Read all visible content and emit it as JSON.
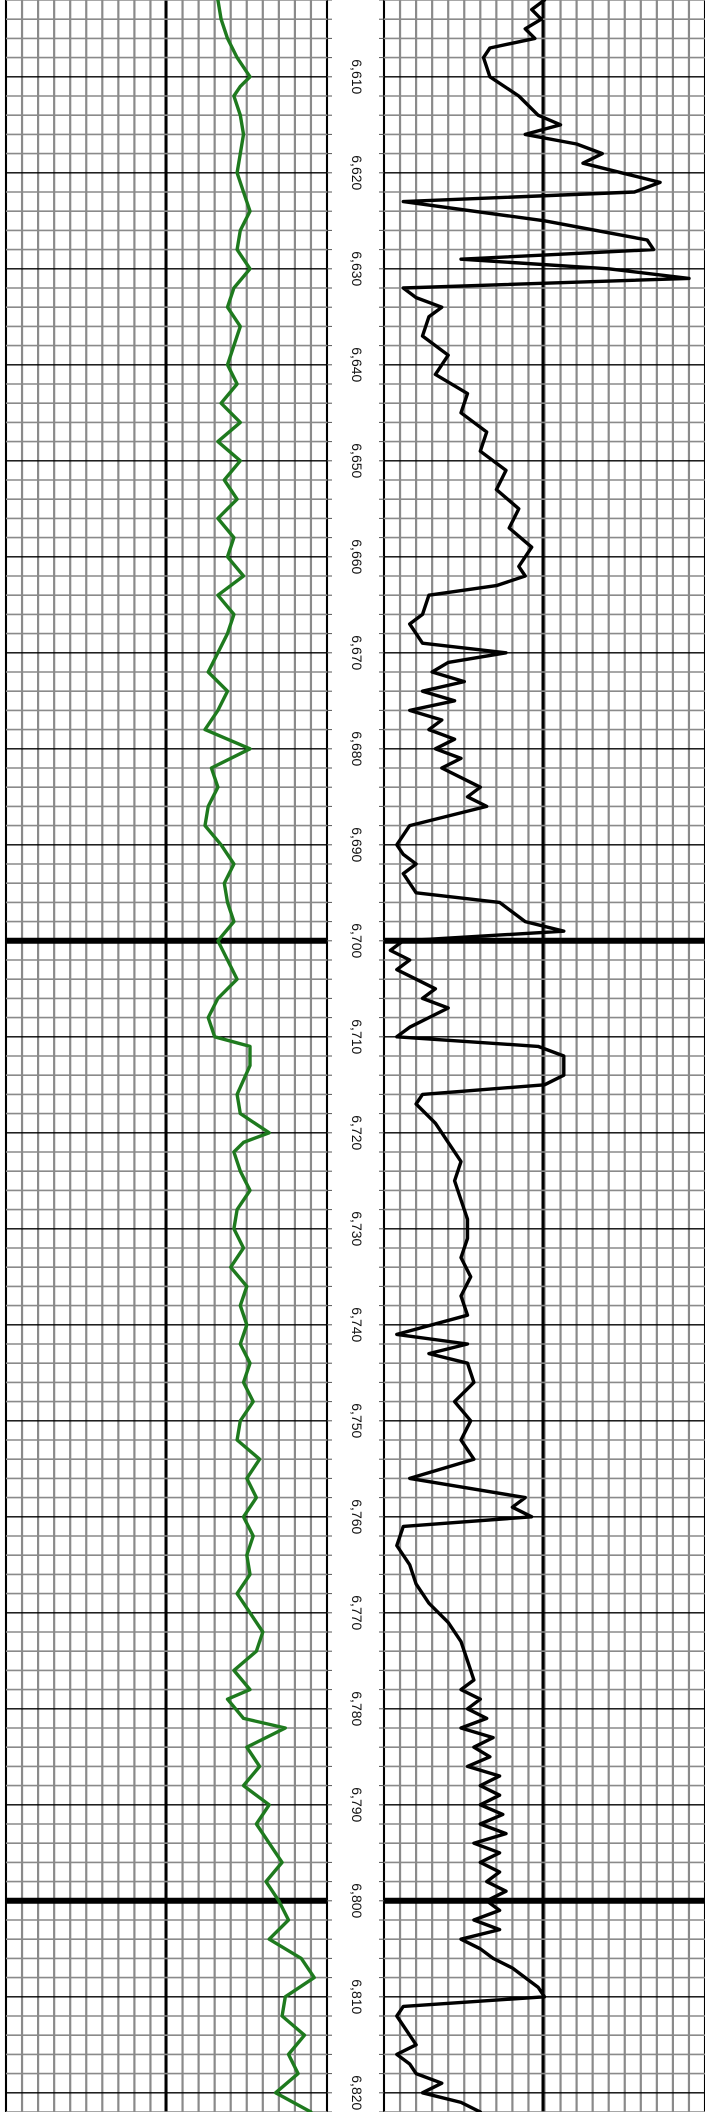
{
  "chart_data": {
    "type": "line",
    "orientation": "vertical-depth",
    "depth_axis": {
      "range": [
        6602,
        6822
      ],
      "tick_labels": [
        "6,610",
        "6,620",
        "6,630",
        "6,640",
        "6,650",
        "6,660",
        "6,670",
        "6,680",
        "6,690",
        "6,700",
        "6,710",
        "6,720",
        "6,730",
        "6,740",
        "6,750",
        "6,760",
        "6,770",
        "6,780",
        "6,790",
        "6,800",
        "6,810",
        "6,820"
      ],
      "tick_values": [
        6610,
        6620,
        6630,
        6640,
        6650,
        6660,
        6670,
        6680,
        6690,
        6700,
        6710,
        6720,
        6730,
        6740,
        6750,
        6760,
        6770,
        6780,
        6790,
        6800,
        6810,
        6820
      ],
      "major_every": 100,
      "grid": true
    },
    "tracks": [
      {
        "series_color": "#1e7a1e",
        "xlim": [
          0,
          1
        ],
        "points": [
          [
            6602,
            0.66
          ],
          [
            6604,
            0.67
          ],
          [
            6606,
            0.69
          ],
          [
            6608,
            0.72
          ],
          [
            6610,
            0.76
          ],
          [
            6611,
            0.73
          ],
          [
            6612,
            0.71
          ],
          [
            6614,
            0.73
          ],
          [
            6616,
            0.74
          ],
          [
            6618,
            0.73
          ],
          [
            6620,
            0.72
          ],
          [
            6622,
            0.74
          ],
          [
            6624,
            0.76
          ],
          [
            6626,
            0.73
          ],
          [
            6628,
            0.72
          ],
          [
            6630,
            0.76
          ],
          [
            6632,
            0.71
          ],
          [
            6634,
            0.69
          ],
          [
            6636,
            0.73
          ],
          [
            6638,
            0.71
          ],
          [
            6640,
            0.69
          ],
          [
            6642,
            0.72
          ],
          [
            6644,
            0.67
          ],
          [
            6646,
            0.73
          ],
          [
            6648,
            0.66
          ],
          [
            6650,
            0.73
          ],
          [
            6652,
            0.68
          ],
          [
            6654,
            0.72
          ],
          [
            6656,
            0.66
          ],
          [
            6658,
            0.71
          ],
          [
            6660,
            0.69
          ],
          [
            6662,
            0.74
          ],
          [
            6664,
            0.66
          ],
          [
            6666,
            0.71
          ],
          [
            6668,
            0.69
          ],
          [
            6670,
            0.66
          ],
          [
            6672,
            0.63
          ],
          [
            6674,
            0.69
          ],
          [
            6676,
            0.66
          ],
          [
            6678,
            0.62
          ],
          [
            6680,
            0.76
          ],
          [
            6682,
            0.64
          ],
          [
            6684,
            0.66
          ],
          [
            6686,
            0.63
          ],
          [
            6688,
            0.62
          ],
          [
            6690,
            0.67
          ],
          [
            6692,
            0.71
          ],
          [
            6694,
            0.68
          ],
          [
            6696,
            0.69
          ],
          [
            6698,
            0.71
          ],
          [
            6700,
            0.66
          ],
          [
            6702,
            0.69
          ],
          [
            6704,
            0.72
          ],
          [
            6706,
            0.66
          ],
          [
            6708,
            0.63
          ],
          [
            6710,
            0.65
          ],
          [
            6711,
            0.76
          ],
          [
            6713,
            0.76
          ],
          [
            6716,
            0.72
          ],
          [
            6718,
            0.73
          ],
          [
            6720,
            0.82
          ],
          [
            6721,
            0.74
          ],
          [
            6722,
            0.71
          ],
          [
            6724,
            0.73
          ],
          [
            6726,
            0.76
          ],
          [
            6728,
            0.72
          ],
          [
            6730,
            0.71
          ],
          [
            6732,
            0.74
          ],
          [
            6734,
            0.7
          ],
          [
            6736,
            0.75
          ],
          [
            6738,
            0.73
          ],
          [
            6740,
            0.75
          ],
          [
            6742,
            0.73
          ],
          [
            6744,
            0.76
          ],
          [
            6746,
            0.74
          ],
          [
            6748,
            0.77
          ],
          [
            6750,
            0.73
          ],
          [
            6752,
            0.72
          ],
          [
            6754,
            0.79
          ],
          [
            6756,
            0.75
          ],
          [
            6758,
            0.78
          ],
          [
            6760,
            0.74
          ],
          [
            6762,
            0.77
          ],
          [
            6764,
            0.75
          ],
          [
            6766,
            0.76
          ],
          [
            6768,
            0.72
          ],
          [
            6770,
            0.76
          ],
          [
            6772,
            0.8
          ],
          [
            6774,
            0.78
          ],
          [
            6776,
            0.71
          ],
          [
            6778,
            0.76
          ],
          [
            6779,
            0.69
          ],
          [
            6781,
            0.74
          ],
          [
            6782,
            0.87
          ],
          [
            6784,
            0.75
          ],
          [
            6786,
            0.79
          ],
          [
            6788,
            0.74
          ],
          [
            6790,
            0.82
          ],
          [
            6792,
            0.78
          ],
          [
            6794,
            0.82
          ],
          [
            6796,
            0.86
          ],
          [
            6798,
            0.81
          ],
          [
            6800,
            0.85
          ],
          [
            6802,
            0.88
          ],
          [
            6804,
            0.82
          ],
          [
            6806,
            0.92
          ],
          [
            6808,
            0.96
          ],
          [
            6810,
            0.87
          ],
          [
            6812,
            0.86
          ],
          [
            6814,
            0.93
          ],
          [
            6816,
            0.88
          ],
          [
            6818,
            0.91
          ],
          [
            6820,
            0.84
          ],
          [
            6822,
            0.95
          ]
        ]
      },
      {
        "series_color": "#000000",
        "xlim": [
          0,
          1
        ],
        "points": [
          [
            6600,
            0.48
          ],
          [
            6602,
            0.5
          ],
          [
            6603,
            0.46
          ],
          [
            6604,
            0.49
          ],
          [
            6605,
            0.44
          ],
          [
            6606,
            0.47
          ],
          [
            6607,
            0.33
          ],
          [
            6608,
            0.31
          ],
          [
            6610,
            0.33
          ],
          [
            6612,
            0.42
          ],
          [
            6614,
            0.48
          ],
          [
            6615,
            0.55
          ],
          [
            6616,
            0.44
          ],
          [
            6617,
            0.6
          ],
          [
            6618,
            0.68
          ],
          [
            6619,
            0.62
          ],
          [
            6620,
            0.74
          ],
          [
            6621,
            0.86
          ],
          [
            6622,
            0.78
          ],
          [
            6623,
            0.06
          ],
          [
            6625,
            0.5
          ],
          [
            6627,
            0.82
          ],
          [
            6628,
            0.84
          ],
          [
            6629,
            0.24
          ],
          [
            6630,
            0.7
          ],
          [
            6631,
            0.95
          ],
          [
            6632,
            0.06
          ],
          [
            6633,
            0.1
          ],
          [
            6634,
            0.18
          ],
          [
            6635,
            0.14
          ],
          [
            6637,
            0.12
          ],
          [
            6639,
            0.2
          ],
          [
            6641,
            0.16
          ],
          [
            6643,
            0.26
          ],
          [
            6645,
            0.24
          ],
          [
            6647,
            0.32
          ],
          [
            6649,
            0.3
          ],
          [
            6651,
            0.38
          ],
          [
            6653,
            0.35
          ],
          [
            6655,
            0.42
          ],
          [
            6657,
            0.39
          ],
          [
            6659,
            0.46
          ],
          [
            6661,
            0.42
          ],
          [
            6662,
            0.44
          ],
          [
            6663,
            0.35
          ],
          [
            6664,
            0.14
          ],
          [
            6666,
            0.12
          ],
          [
            6667,
            0.08
          ],
          [
            6668,
            0.1
          ],
          [
            6669,
            0.12
          ],
          [
            6670,
            0.38
          ],
          [
            6671,
            0.2
          ],
          [
            6672,
            0.15
          ],
          [
            6673,
            0.25
          ],
          [
            6674,
            0.12
          ],
          [
            6675,
            0.22
          ],
          [
            6676,
            0.08
          ],
          [
            6677,
            0.18
          ],
          [
            6678,
            0.14
          ],
          [
            6679,
            0.22
          ],
          [
            6680,
            0.16
          ],
          [
            6681,
            0.24
          ],
          [
            6682,
            0.18
          ],
          [
            6684,
            0.3
          ],
          [
            6685,
            0.26
          ],
          [
            6686,
            0.32
          ],
          [
            6688,
            0.08
          ],
          [
            6690,
            0.04
          ],
          [
            6691,
            0.06
          ],
          [
            6692,
            0.1
          ],
          [
            6693,
            0.06
          ],
          [
            6695,
            0.1
          ],
          [
            6696,
            0.36
          ],
          [
            6697,
            0.4
          ],
          [
            6698,
            0.44
          ],
          [
            6699,
            0.56
          ],
          [
            6700,
            0.06
          ],
          [
            6701,
            0.02
          ],
          [
            6702,
            0.08
          ],
          [
            6703,
            0.04
          ],
          [
            6704,
            0.1
          ],
          [
            6705,
            0.16
          ],
          [
            6706,
            0.12
          ],
          [
            6707,
            0.2
          ],
          [
            6708,
            0.14
          ],
          [
            6709,
            0.08
          ],
          [
            6710,
            0.04
          ],
          [
            6711,
            0.48
          ],
          [
            6712,
            0.56
          ],
          [
            6714,
            0.56
          ],
          [
            6715,
            0.5
          ],
          [
            6716,
            0.12
          ],
          [
            6717,
            0.1
          ],
          [
            6719,
            0.16
          ],
          [
            6721,
            0.2
          ],
          [
            6723,
            0.24
          ],
          [
            6725,
            0.22
          ],
          [
            6727,
            0.24
          ],
          [
            6729,
            0.26
          ],
          [
            6731,
            0.26
          ],
          [
            6733,
            0.24
          ],
          [
            6735,
            0.27
          ],
          [
            6737,
            0.24
          ],
          [
            6739,
            0.26
          ],
          [
            6741,
            0.04
          ],
          [
            6742,
            0.26
          ],
          [
            6743,
            0.14
          ],
          [
            6744,
            0.26
          ],
          [
            6746,
            0.28
          ],
          [
            6748,
            0.22
          ],
          [
            6750,
            0.27
          ],
          [
            6752,
            0.24
          ],
          [
            6754,
            0.28
          ],
          [
            6756,
            0.08
          ],
          [
            6758,
            0.44
          ],
          [
            6759,
            0.4
          ],
          [
            6760,
            0.46
          ],
          [
            6761,
            0.06
          ],
          [
            6763,
            0.04
          ],
          [
            6765,
            0.08
          ],
          [
            6767,
            0.1
          ],
          [
            6769,
            0.14
          ],
          [
            6771,
            0.2
          ],
          [
            6773,
            0.24
          ],
          [
            6775,
            0.26
          ],
          [
            6777,
            0.28
          ],
          [
            6778,
            0.24
          ],
          [
            6779,
            0.3
          ],
          [
            6780,
            0.26
          ],
          [
            6781,
            0.32
          ],
          [
            6782,
            0.24
          ],
          [
            6783,
            0.34
          ],
          [
            6784,
            0.28
          ],
          [
            6785,
            0.33
          ],
          [
            6786,
            0.26
          ],
          [
            6787,
            0.36
          ],
          [
            6788,
            0.3
          ],
          [
            6789,
            0.36
          ],
          [
            6790,
            0.3
          ],
          [
            6791,
            0.37
          ],
          [
            6792,
            0.3
          ],
          [
            6793,
            0.38
          ],
          [
            6794,
            0.28
          ],
          [
            6795,
            0.36
          ],
          [
            6796,
            0.3
          ],
          [
            6797,
            0.36
          ],
          [
            6798,
            0.32
          ],
          [
            6799,
            0.38
          ],
          [
            6800,
            0.32
          ],
          [
            6801,
            0.36
          ],
          [
            6802,
            0.28
          ],
          [
            6803,
            0.36
          ],
          [
            6804,
            0.24
          ],
          [
            6805,
            0.3
          ],
          [
            6806,
            0.34
          ],
          [
            6807,
            0.4
          ],
          [
            6808,
            0.44
          ],
          [
            6809,
            0.48
          ],
          [
            6810,
            0.5
          ],
          [
            6811,
            0.06
          ],
          [
            6812,
            0.04
          ],
          [
            6814,
            0.08
          ],
          [
            6815,
            0.1
          ],
          [
            6816,
            0.04
          ],
          [
            6817,
            0.08
          ],
          [
            6818,
            0.1
          ],
          [
            6819,
            0.18
          ],
          [
            6820,
            0.12
          ],
          [
            6821,
            0.24
          ],
          [
            6822,
            0.3
          ]
        ]
      }
    ]
  }
}
